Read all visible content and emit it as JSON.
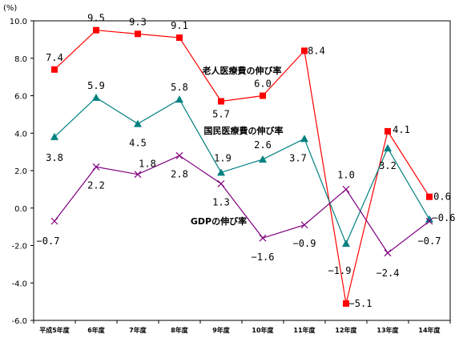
{
  "chart_data": {
    "type": "line",
    "unit_label": "(%)",
    "categories": [
      "平成5年度",
      "6年度",
      "7年度",
      "8年度",
      "9年度",
      "10年度",
      "11年度",
      "12年度",
      "13年度",
      "14年度"
    ],
    "ylim": [
      -6.0,
      10.0
    ],
    "yticks": [
      "10.0",
      "8.0",
      "6.0",
      "4.0",
      "2.0",
      "0.0",
      "-2.0",
      "-4.0",
      "-6.0"
    ],
    "grid": false,
    "series": [
      {
        "name": "老人医療費の伸び率",
        "color": "#ff0000",
        "marker": "square",
        "values": [
          7.4,
          9.5,
          9.3,
          9.1,
          5.7,
          6.0,
          8.4,
          -5.1,
          4.1,
          0.6
        ],
        "labels": [
          "7.4",
          "9.5",
          "9.3",
          "9.1",
          "5.7",
          "6.0",
          "8.4",
          "−5.1",
          "4.1",
          "0.6"
        ]
      },
      {
        "name": "国民医療費の伸び率",
        "color": "#008080",
        "marker": "triangle",
        "values": [
          3.8,
          5.9,
          4.5,
          5.8,
          1.9,
          2.6,
          3.7,
          -1.9,
          3.2,
          -0.6
        ],
        "labels": [
          "3.8",
          "5.9",
          "4.5",
          "5.8",
          "1.9",
          "2.6",
          "3.7",
          "−1.9",
          "3.2",
          "−0.6"
        ]
      },
      {
        "name": "GDPの伸び率",
        "color": "#800080",
        "marker": "x",
        "values": [
          -0.7,
          2.2,
          1.8,
          2.8,
          1.3,
          -1.6,
          -0.9,
          1.0,
          -2.4,
          -0.7
        ],
        "labels": [
          "−0.7",
          "2.2",
          "1.8",
          "2.8",
          "1.3",
          "−1.6",
          "−0.9",
          "1.0",
          "−2.4",
          "−0.7"
        ]
      }
    ]
  }
}
